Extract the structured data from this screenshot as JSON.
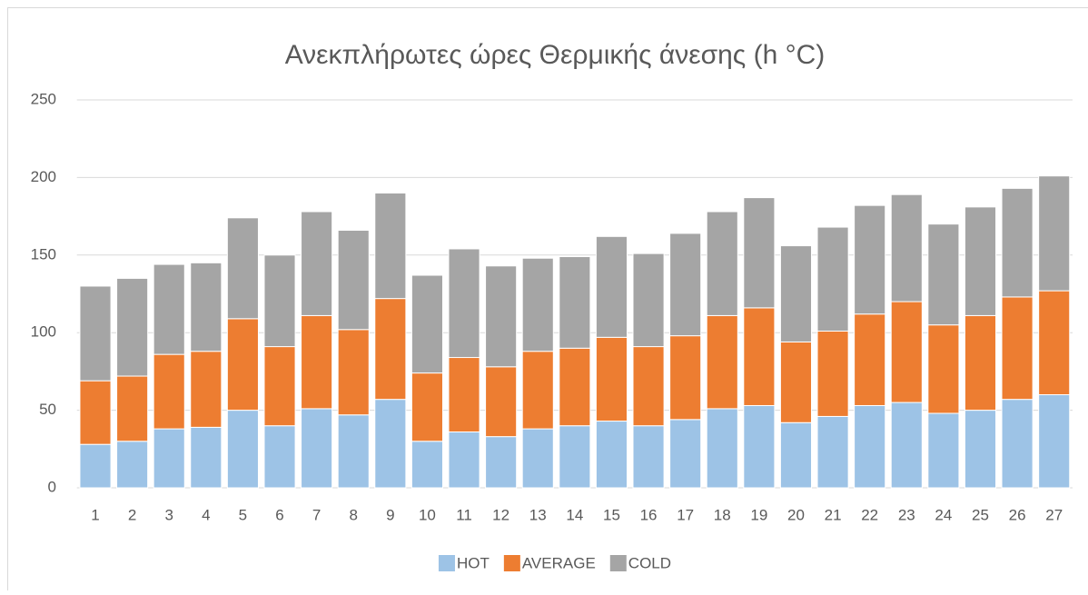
{
  "chart_data": {
    "type": "stacked_bar",
    "title": "Ανεκπλήρωτες ώρες Θερμικής άνεσης (h °C)",
    "categories": [
      "1",
      "2",
      "3",
      "4",
      "5",
      "6",
      "7",
      "8",
      "9",
      "10",
      "11",
      "12",
      "13",
      "14",
      "15",
      "16",
      "17",
      "18",
      "19",
      "20",
      "21",
      "22",
      "23",
      "24",
      "25",
      "26",
      "27"
    ],
    "series": [
      {
        "name": "HOT",
        "color": "#9dc3e6",
        "values": [
          28,
          30,
          38,
          39,
          50,
          40,
          51,
          47,
          57,
          30,
          36,
          33,
          38,
          40,
          43,
          40,
          44,
          51,
          53,
          42,
          46,
          53,
          55,
          48,
          50,
          57,
          60
        ]
      },
      {
        "name": "AVERAGE",
        "color": "#ed7d31",
        "values": [
          41,
          42,
          48,
          49,
          59,
          51,
          60,
          55,
          65,
          44,
          48,
          45,
          50,
          50,
          54,
          51,
          54,
          60,
          63,
          52,
          55,
          59,
          65,
          57,
          61,
          66,
          67
        ]
      },
      {
        "name": "COLD",
        "color": "#a5a5a5",
        "values": [
          61,
          63,
          58,
          57,
          65,
          59,
          67,
          64,
          68,
          63,
          70,
          65,
          60,
          59,
          65,
          60,
          66,
          67,
          71,
          62,
          67,
          70,
          69,
          65,
          70,
          70,
          74
        ]
      }
    ],
    "ylim": [
      0,
      250
    ],
    "yticks": [
      0,
      50,
      100,
      150,
      200,
      250
    ],
    "grid": true,
    "legend": "bottom"
  }
}
